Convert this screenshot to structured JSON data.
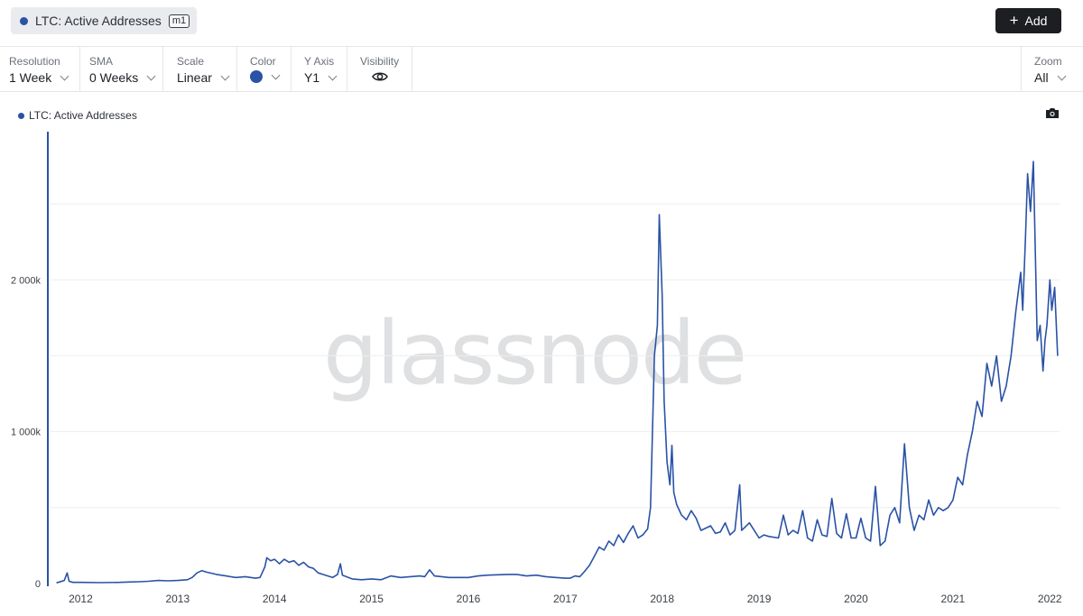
{
  "header": {
    "metric_label": "LTC: Active Addresses",
    "metric_badge": "m1",
    "add_label": "Add"
  },
  "controls": [
    {
      "title": "Resolution",
      "value": "1 Week"
    },
    {
      "title": "SMA",
      "value": "0 Weeks"
    },
    {
      "title": "Scale",
      "value": "Linear"
    },
    {
      "title": "Color",
      "value": ""
    },
    {
      "title": "Y Axis",
      "value": "Y1"
    },
    {
      "title": "Visibility",
      "value": ""
    }
  ],
  "zoom": {
    "title": "Zoom",
    "value": "All"
  },
  "series_color": "#2a52a6",
  "watermark": "glassnode",
  "chart_data": {
    "type": "line",
    "title": "",
    "legend": "top-left",
    "series": [
      {
        "name": "LTC: Active Addresses",
        "color": "#2a52a6",
        "points": [
          [
            2011.75,
            5
          ],
          [
            2011.78,
            10
          ],
          [
            2011.83,
            20
          ],
          [
            2011.86,
            70
          ],
          [
            2011.88,
            15
          ],
          [
            2011.92,
            8
          ],
          [
            2012.0,
            8
          ],
          [
            2012.2,
            6
          ],
          [
            2012.4,
            8
          ],
          [
            2012.5,
            10
          ],
          [
            2012.6,
            12
          ],
          [
            2012.7,
            15
          ],
          [
            2012.8,
            20
          ],
          [
            2012.9,
            18
          ],
          [
            2013.0,
            20
          ],
          [
            2013.1,
            25
          ],
          [
            2013.15,
            40
          ],
          [
            2013.2,
            70
          ],
          [
            2013.25,
            85
          ],
          [
            2013.3,
            75
          ],
          [
            2013.4,
            60
          ],
          [
            2013.5,
            50
          ],
          [
            2013.6,
            40
          ],
          [
            2013.7,
            45
          ],
          [
            2013.8,
            35
          ],
          [
            2013.85,
            40
          ],
          [
            2013.9,
            110
          ],
          [
            2013.92,
            170
          ],
          [
            2013.96,
            150
          ],
          [
            2014.0,
            160
          ],
          [
            2014.05,
            130
          ],
          [
            2014.1,
            160
          ],
          [
            2014.15,
            140
          ],
          [
            2014.2,
            150
          ],
          [
            2014.25,
            120
          ],
          [
            2014.3,
            140
          ],
          [
            2014.35,
            110
          ],
          [
            2014.4,
            100
          ],
          [
            2014.45,
            70
          ],
          [
            2014.5,
            60
          ],
          [
            2014.55,
            50
          ],
          [
            2014.6,
            40
          ],
          [
            2014.65,
            60
          ],
          [
            2014.68,
            130
          ],
          [
            2014.7,
            55
          ],
          [
            2014.8,
            30
          ],
          [
            2014.9,
            25
          ],
          [
            2015.0,
            30
          ],
          [
            2015.1,
            25
          ],
          [
            2015.2,
            50
          ],
          [
            2015.3,
            40
          ],
          [
            2015.4,
            45
          ],
          [
            2015.5,
            50
          ],
          [
            2015.55,
            45
          ],
          [
            2015.6,
            90
          ],
          [
            2015.65,
            50
          ],
          [
            2015.8,
            40
          ],
          [
            2016.0,
            40
          ],
          [
            2016.1,
            50
          ],
          [
            2016.2,
            55
          ],
          [
            2016.4,
            60
          ],
          [
            2016.5,
            60
          ],
          [
            2016.6,
            50
          ],
          [
            2016.7,
            55
          ],
          [
            2016.8,
            45
          ],
          [
            2016.9,
            40
          ],
          [
            2017.0,
            35
          ],
          [
            2017.05,
            35
          ],
          [
            2017.1,
            50
          ],
          [
            2017.15,
            45
          ],
          [
            2017.2,
            80
          ],
          [
            2017.25,
            120
          ],
          [
            2017.3,
            180
          ],
          [
            2017.35,
            240
          ],
          [
            2017.4,
            220
          ],
          [
            2017.45,
            280
          ],
          [
            2017.5,
            250
          ],
          [
            2017.55,
            320
          ],
          [
            2017.6,
            270
          ],
          [
            2017.65,
            330
          ],
          [
            2017.7,
            380
          ],
          [
            2017.75,
            300
          ],
          [
            2017.8,
            320
          ],
          [
            2017.85,
            360
          ],
          [
            2017.88,
            500
          ],
          [
            2017.92,
            1500
          ],
          [
            2017.95,
            1700
          ],
          [
            2017.97,
            2430
          ],
          [
            2018.0,
            1900
          ],
          [
            2018.02,
            1200
          ],
          [
            2018.05,
            800
          ],
          [
            2018.08,
            650
          ],
          [
            2018.1,
            910
          ],
          [
            2018.12,
            600
          ],
          [
            2018.15,
            520
          ],
          [
            2018.2,
            450
          ],
          [
            2018.25,
            420
          ],
          [
            2018.3,
            480
          ],
          [
            2018.35,
            430
          ],
          [
            2018.4,
            350
          ],
          [
            2018.5,
            380
          ],
          [
            2018.55,
            330
          ],
          [
            2018.6,
            340
          ],
          [
            2018.65,
            400
          ],
          [
            2018.7,
            320
          ],
          [
            2018.75,
            350
          ],
          [
            2018.8,
            650
          ],
          [
            2018.82,
            350
          ],
          [
            2018.9,
            400
          ],
          [
            2018.95,
            350
          ],
          [
            2019.0,
            300
          ],
          [
            2019.05,
            320
          ],
          [
            2019.1,
            310
          ],
          [
            2019.2,
            300
          ],
          [
            2019.25,
            450
          ],
          [
            2019.3,
            320
          ],
          [
            2019.35,
            350
          ],
          [
            2019.4,
            330
          ],
          [
            2019.45,
            480
          ],
          [
            2019.5,
            300
          ],
          [
            2019.55,
            280
          ],
          [
            2019.6,
            420
          ],
          [
            2019.65,
            320
          ],
          [
            2019.7,
            310
          ],
          [
            2019.75,
            560
          ],
          [
            2019.8,
            330
          ],
          [
            2019.85,
            300
          ],
          [
            2019.9,
            460
          ],
          [
            2019.95,
            300
          ],
          [
            2020.0,
            300
          ],
          [
            2020.05,
            430
          ],
          [
            2020.1,
            300
          ],
          [
            2020.15,
            280
          ],
          [
            2020.2,
            640
          ],
          [
            2020.25,
            250
          ],
          [
            2020.3,
            280
          ],
          [
            2020.35,
            450
          ],
          [
            2020.4,
            500
          ],
          [
            2020.45,
            400
          ],
          [
            2020.5,
            920
          ],
          [
            2020.55,
            500
          ],
          [
            2020.6,
            350
          ],
          [
            2020.65,
            450
          ],
          [
            2020.7,
            420
          ],
          [
            2020.75,
            550
          ],
          [
            2020.8,
            450
          ],
          [
            2020.85,
            500
          ],
          [
            2020.9,
            480
          ],
          [
            2020.95,
            500
          ],
          [
            2021.0,
            550
          ],
          [
            2021.05,
            700
          ],
          [
            2021.1,
            650
          ],
          [
            2021.15,
            850
          ],
          [
            2021.2,
            1000
          ],
          [
            2021.25,
            1200
          ],
          [
            2021.3,
            1100
          ],
          [
            2021.35,
            1450
          ],
          [
            2021.4,
            1300
          ],
          [
            2021.45,
            1500
          ],
          [
            2021.5,
            1200
          ],
          [
            2021.55,
            1300
          ],
          [
            2021.6,
            1500
          ],
          [
            2021.65,
            1800
          ],
          [
            2021.7,
            2050
          ],
          [
            2021.72,
            1800
          ],
          [
            2021.75,
            2300
          ],
          [
            2021.77,
            2700
          ],
          [
            2021.8,
            2450
          ],
          [
            2021.83,
            2780
          ],
          [
            2021.87,
            1600
          ],
          [
            2021.9,
            1700
          ],
          [
            2021.93,
            1400
          ],
          [
            2021.95,
            1600
          ],
          [
            2021.97,
            1700
          ],
          [
            2022.0,
            2000
          ],
          [
            2022.02,
            1800
          ],
          [
            2022.05,
            1950
          ],
          [
            2022.08,
            1500
          ]
        ]
      }
    ],
    "x_ticks": [
      "2012",
      "2013",
      "2014",
      "2015",
      "2016",
      "2017",
      "2018",
      "2019",
      "2020",
      "2021",
      "2022"
    ],
    "y_ticks": [
      {
        "value": 0,
        "label": "0"
      },
      {
        "value": 1000,
        "label": "1 000k"
      },
      {
        "value": 2000,
        "label": "2 000k"
      }
    ],
    "xlim": [
      2011.67,
      2022.1
    ],
    "ylim": [
      0,
      2970
    ],
    "y_unit": "thousands of addresses",
    "grid": "horizontal"
  }
}
